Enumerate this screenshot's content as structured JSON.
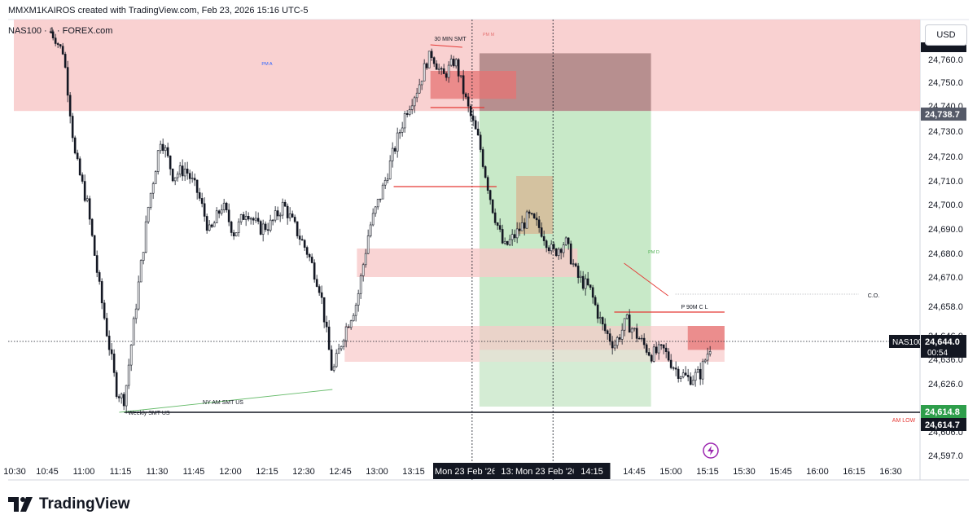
{
  "header": {
    "attribution": "MMXM1KAIROS created with TradingView.com, Feb 23, 2026 15:16 UTC-5",
    "symbol_line": "NAS100 · 1 · FOREX.com",
    "currency_button": "USD"
  },
  "brand": {
    "name": "TradingView"
  },
  "colors": {
    "up_candle": "#000000",
    "down_candle": "#000000",
    "premium_zone": "#f8c9c9",
    "demand_zone": "#f8c9c9",
    "target_zone": "#b6e2b6",
    "stop_zone": "#a07878",
    "tan_zone": "#d9b18f",
    "red_line": "#e53935",
    "green_line": "#66bb6a",
    "price_label_green": "#2e9e4b"
  },
  "chart_data": {
    "type": "candlestick",
    "instrument": "NAS100",
    "timeframe_minutes": 1,
    "date": "Mon 23 Feb '26",
    "y_range": [
      24590,
      24790
    ],
    "y_ticks": [
      24760.0,
      24750.0,
      24740.0,
      24730.0,
      24720.0,
      24710.0,
      24700.0,
      24690.0,
      24680.0,
      24670.0,
      24658.0,
      24646.0,
      24636.0,
      24626.0,
      24614.0,
      24606.0,
      24597.0
    ],
    "x_ticks": [
      "10:30",
      "10:45",
      "11:00",
      "11:15",
      "11:30",
      "11:45",
      "12:00",
      "12:15",
      "12:30",
      "12:45",
      "13:00",
      "13:15",
      "Mon 23 Feb '26",
      "13:",
      "Mon 23 Feb '26",
      "14:15",
      "14:45",
      "15:00",
      "15:15",
      "15:30",
      "15:45",
      "16:00",
      "16:15",
      "16:30"
    ],
    "price_path": [
      [
        "10:45",
        24778
      ],
      [
        "10:50",
        24765
      ],
      [
        "10:55",
        24720
      ],
      [
        "11:00",
        24700
      ],
      [
        "11:05",
        24665
      ],
      [
        "11:10",
        24635
      ],
      [
        "11:12",
        24622
      ],
      [
        "11:15",
        24618
      ],
      [
        "11:20",
        24660
      ],
      [
        "11:25",
        24700
      ],
      [
        "11:30",
        24728
      ],
      [
        "11:35",
        24712
      ],
      [
        "11:40",
        24715
      ],
      [
        "11:45",
        24705
      ],
      [
        "11:50",
        24688
      ],
      [
        "11:55",
        24700
      ],
      [
        "12:00",
        24688
      ],
      [
        "12:05",
        24698
      ],
      [
        "12:10",
        24690
      ],
      [
        "12:15",
        24692
      ],
      [
        "12:20",
        24700
      ],
      [
        "12:25",
        24690
      ],
      [
        "12:30",
        24680
      ],
      [
        "12:35",
        24665
      ],
      [
        "12:40",
        24630
      ],
      [
        "12:45",
        24648
      ],
      [
        "12:50",
        24660
      ],
      [
        "12:55",
        24690
      ],
      [
        "13:00",
        24705
      ],
      [
        "13:05",
        24722
      ],
      [
        "13:10",
        24738
      ],
      [
        "13:15",
        24748
      ],
      [
        "13:20",
        24764
      ],
      [
        "13:25",
        24752
      ],
      [
        "13:30",
        24760
      ],
      [
        "13:35",
        24740
      ],
      [
        "13:40",
        24725
      ],
      [
        "13:45",
        24700
      ],
      [
        "13:50",
        24682
      ],
      [
        "13:55",
        24688
      ],
      [
        "14:00",
        24695
      ],
      [
        "14:05",
        24690
      ],
      [
        "14:10",
        24680
      ],
      [
        "14:15",
        24685
      ],
      [
        "14:20",
        24670
      ],
      [
        "14:25",
        24665
      ],
      [
        "14:30",
        24650
      ],
      [
        "14:35",
        24642
      ],
      [
        "14:40",
        24652
      ],
      [
        "14:45",
        24645
      ],
      [
        "14:50",
        24638
      ],
      [
        "14:55",
        24640
      ],
      [
        "15:00",
        24632
      ],
      [
        "15:05",
        24628
      ],
      [
        "15:10",
        24630
      ],
      [
        "15:15",
        24644
      ]
    ],
    "current_price": {
      "symbol": "NAS100",
      "value": "24,644.0",
      "countdown": "00:54"
    },
    "price_labels": [
      {
        "value": "24,738.7",
        "style": "dark"
      },
      {
        "value": "24,614.8",
        "style": "green"
      },
      {
        "value": "24,614.7",
        "style": "dark"
      }
    ],
    "zones": [
      {
        "name": "premium",
        "label": "PM A",
        "from": "10:30",
        "to": "16:45",
        "top": 24790,
        "bottom": 24738
      },
      {
        "name": "stop",
        "from": "13:40",
        "to": "14:50",
        "top": 24764,
        "bottom": 24738
      },
      {
        "name": "target",
        "from": "13:40",
        "to": "14:50",
        "top": 24738,
        "bottom": 24614.8,
        "label": "PM D"
      },
      {
        "name": "red-block-1",
        "from": "13:20",
        "to": "13:55",
        "top": 24755,
        "bottom": 24743
      },
      {
        "name": "tan-block",
        "from": "13:55",
        "to": "14:10",
        "top": 24712,
        "bottom": 24688
      },
      {
        "name": "demand-mid",
        "from": "12:50",
        "to": "14:20",
        "top": 24682,
        "bottom": 24670
      },
      {
        "name": "demand-low",
        "from": "12:45",
        "to": "15:20",
        "top": 24650,
        "bottom": 24635
      },
      {
        "name": "red-block-2",
        "from": "15:05",
        "to": "15:20",
        "top": 24650,
        "bottom": 24640
      }
    ],
    "annotations": [
      {
        "text": "30 MIN SMT",
        "at": "13:20",
        "price": 24768
      },
      {
        "text": "PM M",
        "at": "13:42",
        "price": 24772
      },
      {
        "text": "NY AM SMT US",
        "at": "11:50",
        "price": 24620
      },
      {
        "text": "Weekly SMT US",
        "at": "11:20",
        "price": 24609
      },
      {
        "text": "C.O.",
        "at": "15:45",
        "price": 24665
      },
      {
        "text": "P 90M C L",
        "at": "14:55",
        "price": 24660
      },
      {
        "text": "AM LOW",
        "at": "16:30",
        "price": 24607
      }
    ]
  }
}
